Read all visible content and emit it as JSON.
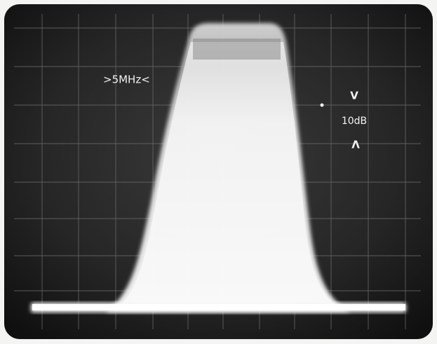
{
  "annotations": {
    "frequency_span": ">5MHz<",
    "top_marker": "V",
    "scale": "10dB",
    "bottom_marker": "Λ"
  }
}
